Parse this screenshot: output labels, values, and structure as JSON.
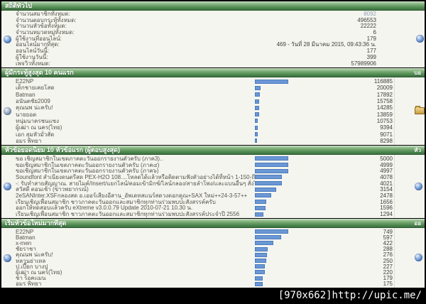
{
  "watermark": "[970x662]http://upic.me/",
  "colors": {
    "header_green": "#4f8a51",
    "bar_fill": "#6b97d5",
    "bar_border": "#4a7cc0",
    "content_bg": "#f5f5ef",
    "link_value": "#93a1b3"
  },
  "icons": {
    "general_left": "stats-pie-icon",
    "general_right": "stats-pie-icon",
    "posters_left": "members-icon",
    "posters_right": "folder-icon",
    "topics_left": "stats-pie-icon",
    "topics_right": "stats-pie-icon",
    "starters_left": "stats-pie-icon",
    "starters_right": "stats-pie-icon"
  },
  "general": {
    "title": "สถิติทั่วไป",
    "rows": [
      {
        "label": "จำนวนสมาชิกทั้งหมด:",
        "value": "8092",
        "link": true
      },
      {
        "label": "จำนวนตอบกระทู้ทั้งหมด:",
        "value": "496553"
      },
      {
        "label": "จำนวนหัวข้อทั้งหมด:",
        "value": "22222"
      },
      {
        "label": "จำนวนหมวดหมู่ทั้งหมด:",
        "value": "6"
      },
      {
        "label": "ผู้ใช้งานที่ออนไลน์:",
        "value": "179"
      },
      {
        "label": "ออนไลน์มากที่สุด:",
        "value": "469 - วันที่ 28 มีนาคม 2015, 09:43:36 น."
      },
      {
        "label": "ออนไลน์วันนี้:",
        "value": "177"
      },
      {
        "label": "ผู้ใช้งานวันนี้:",
        "value": "399"
      },
      {
        "label": "เพจวิวทั้งหมด:",
        "value": "57989906"
      }
    ]
  },
  "top_posters": {
    "title": "ผู้มีกระทู้สูงสุด 10 คนแรก",
    "header_right_fragment": "บอ",
    "max_value": 116885,
    "rows": [
      {
        "name": "E22NP",
        "value": 116885
      },
      {
        "name": "เด็กชายเคยโสด",
        "value": 20009
      },
      {
        "name": "Batman",
        "value": 17892
      },
      {
        "name": "อนันตชัย2009",
        "value": 15758
      },
      {
        "name": "คุณนพ น่ะครับ!",
        "value": 14285
      },
      {
        "name": "นายยอด",
        "value": 13859
      },
      {
        "name": "หนุ่มนาครชนแซง",
        "value": 10753
      },
      {
        "name": "ผู้เฒ่า ณ นคร(ไทย)",
        "value": 9394
      },
      {
        "name": "เอก สุมหัวมั่วสัด",
        "value": 9071
      },
      {
        "name": "อมร พิทยา",
        "value": 8298
      }
    ]
  },
  "top_topics": {
    "title": "หัวข้อยอดนิยม 10 หัวข้อแรก (ผู้ตอบสูงสุด)",
    "header_right_fragment": "หัว",
    "max_value": 5000,
    "rows": [
      {
        "name": "ขอ เชิญสมาชิกในเขตภาคตะวันออกรายงานตัวครับ (ภาค3)..",
        "value": 5000
      },
      {
        "name": "ขอเชิญสมาชิกในเขตภาคตะวันออกรายงานตัวครับ (ภาค๔)",
        "value": 4999
      },
      {
        "name": "ขอเชิญสมาชิกในเขตภาคตะวันออกรายงานตัวครับ (ภาค๖)",
        "value": 4997
      },
      {
        "name": "Soundfont สำเนียงดนตรีสด PEX-H2O 108....โหลดได้แล้วหรือติดตามฟังตัวอย่างได้ที่หน้า 1-150-ถึง-161",
        "value": 4078
      },
      {
        "name": "-: รับทำสายสัญญาณ. สายไมค์/Insert/แยกไลน์/คอมเข้ามิกซ์/ไลน์กลอง/สายลำโพง/และแบนอื่นๆ สั่งได้",
        "value": 4021
      },
      {
        "name": "สวัสดี ตอนเช้า (ข่าวพยากรณ์)",
        "value": 3154
      },
      {
        "name": "2eSANInter.XSFกลองสด อ.เออร์เสียงอีสาน_อัพเดทสแนร์สดวงดอกคูณ+SAX ใหม่++24-3-57++",
        "value": 2478
      },
      {
        "name": "เรียนเชิญเพื่อนสมาชิก ชาวภาคตะวันออกและสมาชิกทุกท่านร่วมพบปะสังสรรค์ครับ",
        "value": 1656
      },
      {
        "name": "ออกให้ทดสอบแล้วครับ eXtreme v3.0.0.79 Update 2010-07-21 10.30 น.",
        "value": 1596
      },
      {
        "name": "เรียนเชิญเพื่อนสมาชิก ชาวภาคตะวันออกและสมาชิกทุกท่านร่วมพบปะสังสรรค์ประจำปี 2556",
        "value": 1294
      }
    ]
  },
  "top_starters": {
    "title": "เริ่มหัวข้อใหม่มากที่สุด",
    "header_right_fragment": "ออ",
    "max_value": 749,
    "rows": [
      {
        "name": "E22NP",
        "value": 749
      },
      {
        "name": "Batman",
        "value": 597
      },
      {
        "name": "x-men",
        "value": 422
      },
      {
        "name": "ชัยราชา",
        "value": 288
      },
      {
        "name": "คุณนพ น่ะครับ!",
        "value": 276
      },
      {
        "name": "หลานย่าเหล",
        "value": 250
      },
      {
        "name": "ป.เปี๊ยก บางปู",
        "value": 227
      },
      {
        "name": "ผู้เฒ่า ณ นคร(ไทย)",
        "value": 220
      },
      {
        "name": "ชา ร็อคแมน",
        "value": 179
      },
      {
        "name": "อมร พิทยา",
        "value": 175
      }
    ]
  }
}
